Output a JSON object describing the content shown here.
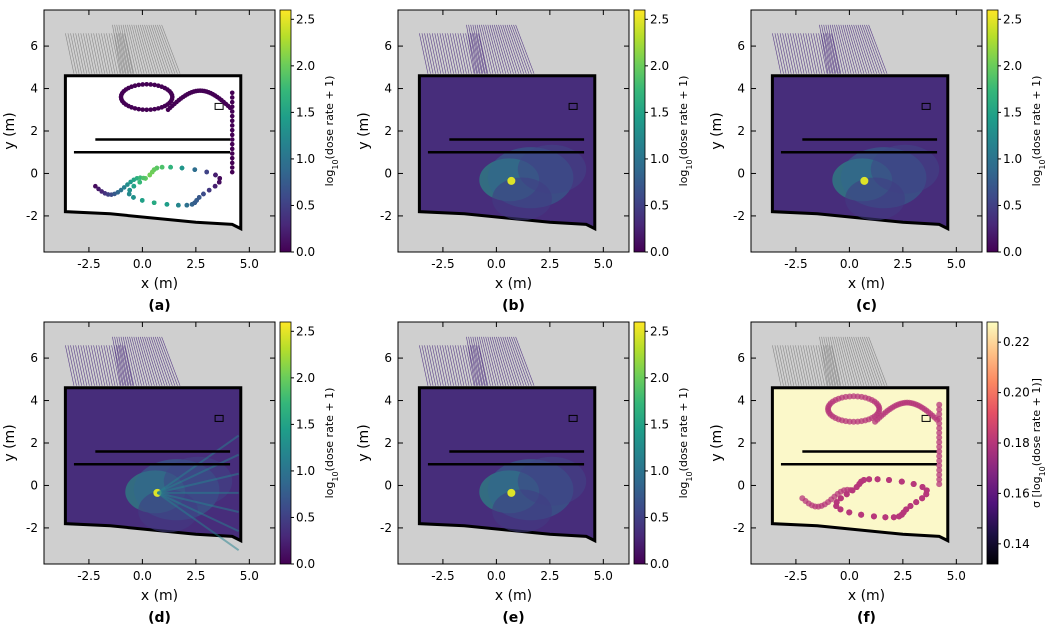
{
  "chart_data": [
    {
      "type": "scatter",
      "panel_label": "(a)",
      "background": "map-with-measurement-points",
      "xlabel": "x (m)",
      "ylabel": "y (m)",
      "xticks": [
        "-2.5",
        "0.0",
        "2.5",
        "5.0"
      ],
      "yticks": [
        "-2",
        "0",
        "2",
        "4",
        "6"
      ],
      "xlim": [
        -4.6,
        6.2
      ],
      "ylim": [
        -3.7,
        7.7
      ],
      "colorbar": {
        "label_main": "log",
        "label_sub": "10",
        "label_rest": "(dose rate + 1)",
        "ticks": [
          "0.0",
          "0.5",
          "1.0",
          "1.5",
          "2.0",
          "2.5"
        ],
        "range": [
          0,
          2.6
        ],
        "cmap": "viridis"
      }
    },
    {
      "type": "heatmap",
      "panel_label": "(b)",
      "background": "interpolated-field",
      "xlabel": "x (m)",
      "ylabel": "y (m)",
      "xticks": [
        "-2.5",
        "0.0",
        "2.5",
        "5.0"
      ],
      "yticks": [
        "-2",
        "0",
        "2",
        "4",
        "6"
      ],
      "xlim": [
        -4.6,
        6.2
      ],
      "ylim": [
        -3.7,
        7.7
      ],
      "colorbar": {
        "label_main": "log",
        "label_sub": "10",
        "label_rest": "(dose rate + 1)",
        "ticks": [
          "0.0",
          "0.5",
          "1.0",
          "1.5",
          "2.0",
          "2.5"
        ],
        "range": [
          0,
          2.6
        ],
        "cmap": "viridis"
      }
    },
    {
      "type": "heatmap",
      "panel_label": "(c)",
      "background": "interpolated-field-smooth",
      "xlabel": "x (m)",
      "ylabel": "y (m)",
      "xticks": [
        "-2.5",
        "0.0",
        "2.5",
        "5.0"
      ],
      "yticks": [
        "-2",
        "0",
        "2",
        "4",
        "6"
      ],
      "xlim": [
        -4.6,
        6.2
      ],
      "ylim": [
        -3.7,
        7.7
      ],
      "colorbar": {
        "label_main": "log",
        "label_sub": "10",
        "label_rest": "(dose rate + 1)",
        "ticks": [
          "0.0",
          "0.5",
          "1.0",
          "1.5",
          "2.0",
          "2.5"
        ],
        "range": [
          0,
          2.6
        ],
        "cmap": "viridis"
      }
    },
    {
      "type": "heatmap",
      "panel_label": "(d)",
      "background": "ray-traced-field",
      "xlabel": "x (m)",
      "ylabel": "y (m)",
      "xticks": [
        "-2.5",
        "0.0",
        "2.5",
        "5.0"
      ],
      "yticks": [
        "-2",
        "0",
        "2",
        "4",
        "6"
      ],
      "xlim": [
        -4.6,
        6.2
      ],
      "ylim": [
        -3.7,
        7.7
      ],
      "colorbar": {
        "label_main": "log",
        "label_sub": "10",
        "label_rest": "(dose rate + 1)",
        "ticks": [
          "0.0",
          "0.5",
          "1.0",
          "1.5",
          "2.0",
          "2.5"
        ],
        "range": [
          0,
          2.6
        ],
        "cmap": "viridis"
      }
    },
    {
      "type": "heatmap",
      "panel_label": "(e)",
      "background": "interpolated-field",
      "xlabel": "x (m)",
      "ylabel": "y (m)",
      "xticks": [
        "-2.5",
        "0.0",
        "2.5",
        "5.0"
      ],
      "yticks": [
        "-2",
        "0",
        "2",
        "4",
        "6"
      ],
      "xlim": [
        -4.6,
        6.2
      ],
      "ylim": [
        -3.7,
        7.7
      ],
      "colorbar": {
        "label_main": "log",
        "label_sub": "10",
        "label_rest": "(dose rate + 1)",
        "ticks": [
          "0.0",
          "0.5",
          "1.0",
          "1.5",
          "2.0",
          "2.5"
        ],
        "range": [
          0,
          2.6
        ],
        "cmap": "viridis"
      }
    },
    {
      "type": "heatmap",
      "panel_label": "(f)",
      "background": "uncertainty-field",
      "xlabel": "x (m)",
      "ylabel": "y (m)",
      "xticks": [
        "-2.5",
        "0.0",
        "2.5",
        "5.0"
      ],
      "yticks": [
        "-2",
        "0",
        "2",
        "4",
        "6"
      ],
      "xlim": [
        -4.6,
        6.2
      ],
      "ylim": [
        -3.7,
        7.7
      ],
      "colorbar": {
        "label_main": "σ [log",
        "label_sub": "10",
        "label_rest": "(dose rate + 1)]",
        "ticks": [
          "0.14",
          "0.16",
          "0.18",
          "0.20",
          "0.22"
        ],
        "range": [
          0.132,
          0.228
        ],
        "cmap": "magma"
      }
    }
  ],
  "colors": {
    "outside": "#cfcfcf",
    "wall": "#000000",
    "viridis": [
      "#440154",
      "#482878",
      "#3e4989",
      "#31688e",
      "#26828e",
      "#1f9e89",
      "#35b779",
      "#6ece58",
      "#b5de2b",
      "#fde725"
    ],
    "magma": [
      "#000004",
      "#1c1044",
      "#4f127b",
      "#812581",
      "#b5367a",
      "#e55064",
      "#fb8761",
      "#fec287",
      "#fcfdbf"
    ]
  }
}
